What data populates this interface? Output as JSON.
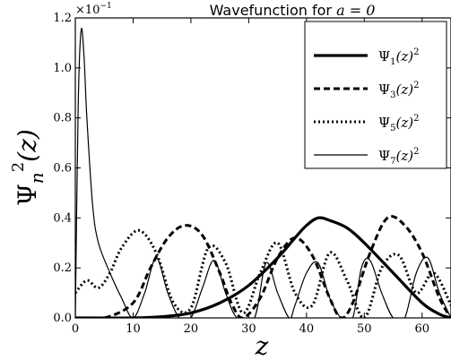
{
  "chart_data": {
    "type": "line",
    "title_prefix": "Wavefunction for ",
    "title_math": "a = 0",
    "xlabel": "z",
    "ylabel_base": "Ψ",
    "ylabel_sub": "n",
    "ylabel_sup": "2",
    "ylabel_arg": "(z)",
    "y_multiplier_base": "×10",
    "y_multiplier_exp": "−1",
    "xlim": [
      0,
      65
    ],
    "ylim": [
      0,
      1.2
    ],
    "x_ticks": [
      0,
      10,
      20,
      30,
      40,
      50,
      60
    ],
    "y_ticks": [
      0.0,
      0.2,
      0.4,
      0.6,
      0.8,
      1.0,
      1.2
    ],
    "y_tick_labels": [
      "0.0",
      "0.2",
      "0.4",
      "0.6",
      "0.8",
      "1.0",
      "1.2"
    ],
    "legend_position": "top-right",
    "series": [
      {
        "name_base": "Ψ",
        "name_sub": "1",
        "name_tail": "(z)",
        "name_sup": "2",
        "style": "solid-thick",
        "x": [
          0,
          10,
          15,
          20,
          25,
          30,
          35,
          38,
          40,
          42,
          44,
          47,
          50,
          55,
          60,
          63,
          65
        ],
        "y": [
          0.0,
          0.0,
          0.005,
          0.02,
          0.06,
          0.13,
          0.24,
          0.32,
          0.37,
          0.4,
          0.39,
          0.36,
          0.3,
          0.18,
          0.06,
          0.015,
          0.0
        ]
      },
      {
        "name_base": "Ψ",
        "name_sub": "3",
        "name_tail": "(z)",
        "name_sup": "2",
        "style": "dashed",
        "x": [
          0,
          5,
          10,
          13,
          16,
          19,
          22,
          25,
          27,
          29,
          32,
          35,
          38,
          41,
          44,
          46,
          48,
          51,
          54,
          57,
          60,
          63,
          65
        ],
        "y": [
          0.0,
          0.0,
          0.06,
          0.2,
          0.32,
          0.37,
          0.33,
          0.18,
          0.06,
          0.0,
          0.08,
          0.24,
          0.32,
          0.25,
          0.08,
          0.0,
          0.06,
          0.26,
          0.4,
          0.37,
          0.26,
          0.08,
          0.0
        ]
      },
      {
        "name_base": "Ψ",
        "name_sub": "5",
        "name_tail": "(z)",
        "name_sup": "2",
        "style": "dotted",
        "x": [
          0,
          2,
          4,
          6,
          8,
          11,
          14,
          17,
          20,
          23,
          26,
          29,
          32,
          35,
          38,
          41,
          44,
          47,
          50,
          53,
          56,
          59,
          62,
          65
        ],
        "y": [
          0.1,
          0.15,
          0.12,
          0.18,
          0.28,
          0.35,
          0.26,
          0.06,
          0.04,
          0.28,
          0.22,
          0.02,
          0.18,
          0.3,
          0.1,
          0.05,
          0.26,
          0.15,
          0.0,
          0.2,
          0.25,
          0.1,
          0.18,
          0.05
        ]
      },
      {
        "name_base": "Ψ",
        "name_sub": "7",
        "name_tail": "(z)",
        "name_sup": "2",
        "style": "solid-thin",
        "x": [
          0,
          0.5,
          1,
          1.5,
          2,
          3,
          4,
          6,
          8,
          10,
          12,
          14,
          16,
          18,
          20,
          22,
          24,
          26,
          28,
          31,
          33,
          35,
          37,
          38,
          40,
          42,
          44,
          46,
          48,
          49.5,
          51,
          53,
          55,
          57,
          59,
          61,
          63,
          65
        ],
        "y": [
          0.0,
          0.85,
          1.15,
          1.05,
          0.8,
          0.45,
          0.3,
          0.18,
          0.08,
          0.0,
          0.1,
          0.24,
          0.1,
          0.0,
          0.0,
          0.12,
          0.23,
          0.1,
          0.0,
          0.0,
          0.22,
          0.1,
          0.0,
          0.05,
          0.18,
          0.22,
          0.08,
          0.0,
          0.0,
          0.2,
          0.23,
          0.1,
          0.0,
          0.0,
          0.18,
          0.24,
          0.1,
          0.0
        ]
      }
    ]
  }
}
